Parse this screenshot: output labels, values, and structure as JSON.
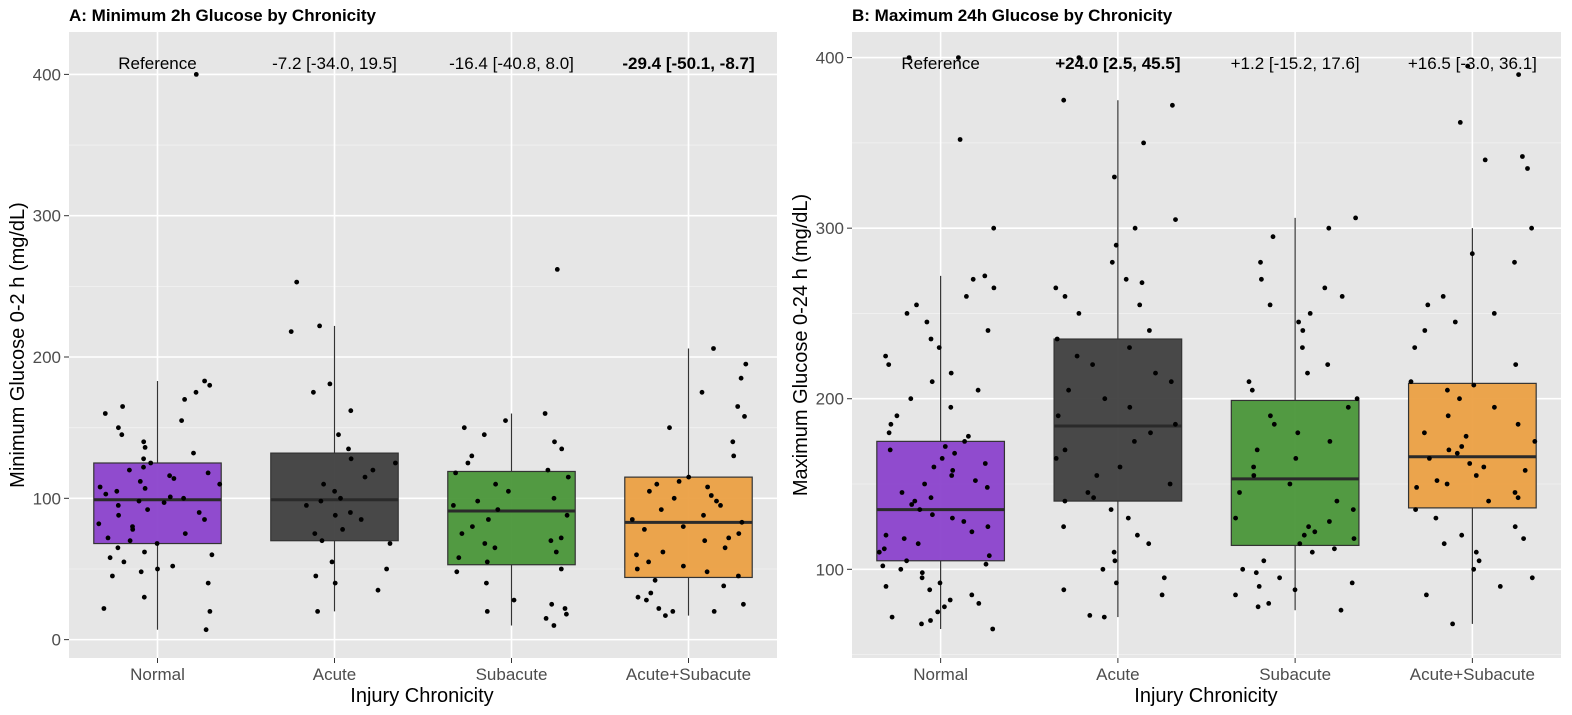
{
  "chart_data": [
    {
      "type": "box",
      "title": "A: Minimum 2h Glucose by Chronicity",
      "xlabel": "Injury Chronicity",
      "ylabel": "Minimum Glucose 0-2 h (mg/dL)",
      "ylim": [
        -13,
        430
      ],
      "yticks": [
        0,
        100,
        200,
        300,
        400
      ],
      "grid": true,
      "categories": [
        "Normal",
        "Acute",
        "Subacute",
        "Acute+Subacute"
      ],
      "colors": [
        "#8B42CC",
        "#3F3F3F",
        "#4A9639",
        "#EBA043"
      ],
      "annotations": [
        {
          "text": "Reference",
          "bold": false
        },
        {
          "text": "-7.2 [-34.0, 19.5]",
          "bold": false
        },
        {
          "text": "-16.4 [-40.8, 8.0]",
          "bold": false
        },
        {
          "text": "-29.4 [-50.1, -8.7]",
          "bold": true
        }
      ],
      "boxes": [
        {
          "q1": 68,
          "median": 99,
          "q3": 125,
          "whisker_low": 7,
          "whisker_high": 183
        },
        {
          "q1": 70,
          "median": 99,
          "q3": 132,
          "whisker_low": 20,
          "whisker_high": 222
        },
        {
          "q1": 53,
          "median": 91,
          "q3": 119,
          "whisker_low": 10,
          "whisker_high": 160
        },
        {
          "q1": 44,
          "median": 83,
          "q3": 115,
          "whisker_low": 17,
          "whisker_high": 206
        }
      ],
      "points": [
        [
          7,
          20,
          22,
          30,
          40,
          45,
          48,
          50,
          52,
          55,
          58,
          60,
          62,
          65,
          68,
          70,
          72,
          75,
          78,
          80,
          82,
          85,
          88,
          90,
          92,
          95,
          97,
          98,
          100,
          101,
          103,
          105,
          107,
          108,
          110,
          112,
          114,
          116,
          118,
          120,
          122,
          125,
          128,
          132,
          136,
          140,
          145,
          150,
          155,
          160,
          165,
          170,
          175,
          180,
          183,
          400
        ],
        [
          20,
          35,
          40,
          45,
          50,
          55,
          68,
          70,
          75,
          78,
          85,
          88,
          90,
          95,
          98,
          100,
          105,
          110,
          115,
          120,
          125,
          128,
          135,
          145,
          162,
          175,
          181,
          218,
          222,
          253
        ],
        [
          10,
          15,
          18,
          20,
          22,
          25,
          28,
          40,
          48,
          50,
          55,
          58,
          62,
          65,
          68,
          70,
          72,
          75,
          80,
          85,
          88,
          92,
          95,
          98,
          100,
          105,
          110,
          115,
          118,
          120,
          125,
          130,
          135,
          140,
          145,
          150,
          155,
          160,
          262
        ],
        [
          17,
          20,
          20,
          22,
          25,
          28,
          30,
          33,
          38,
          42,
          45,
          48,
          50,
          52,
          55,
          60,
          62,
          65,
          70,
          72,
          75,
          78,
          80,
          83,
          85,
          88,
          92,
          95,
          98,
          100,
          102,
          105,
          108,
          110,
          112,
          115,
          130,
          140,
          150,
          158,
          165,
          175,
          185,
          195,
          206
        ]
      ]
    },
    {
      "type": "box",
      "title": "B: Maximum 24h Glucose by Chronicity",
      "xlabel": "Injury Chronicity",
      "ylabel": "Maximum Glucose 0-24 h (mg/dL)",
      "ylim": [
        48,
        415
      ],
      "yticks": [
        100,
        200,
        300,
        400
      ],
      "grid": true,
      "categories": [
        "Normal",
        "Acute",
        "Subacute",
        "Acute+Subacute"
      ],
      "colors": [
        "#8B42CC",
        "#3F3F3F",
        "#4A9639",
        "#EBA043"
      ],
      "annotations": [
        {
          "text": "Reference",
          "bold": false
        },
        {
          "text": "+24.0 [2.5, 45.5]",
          "bold": true
        },
        {
          "text": "+1.2 [-15.2, 17.6]",
          "bold": false
        },
        {
          "text": "+16.5 [-3.0, 36.1]",
          "bold": false
        }
      ],
      "boxes": [
        {
          "q1": 105,
          "median": 135,
          "q3": 175,
          "whisker_low": 65,
          "whisker_high": 272
        },
        {
          "q1": 140,
          "median": 184,
          "q3": 235,
          "whisker_low": 72,
          "whisker_high": 375
        },
        {
          "q1": 114,
          "median": 153,
          "q3": 199,
          "whisker_low": 76,
          "whisker_high": 306
        },
        {
          "q1": 136,
          "median": 166,
          "q3": 209,
          "whisker_low": 68,
          "whisker_high": 300
        }
      ],
      "points": [
        [
          65,
          68,
          70,
          72,
          75,
          78,
          80,
          82,
          85,
          88,
          90,
          92,
          95,
          98,
          100,
          102,
          103,
          105,
          108,
          110,
          112,
          115,
          118,
          120,
          122,
          125,
          128,
          130,
          132,
          135,
          138,
          140,
          142,
          145,
          148,
          150,
          152,
          155,
          158,
          160,
          162,
          165,
          168,
          170,
          172,
          175,
          178,
          180,
          185,
          190,
          195,
          200,
          205,
          210,
          215,
          220,
          225,
          230,
          235,
          240,
          245,
          250,
          255,
          260,
          265,
          270,
          272,
          300,
          352,
          400,
          400
        ],
        [
          72,
          73,
          85,
          88,
          92,
          95,
          100,
          105,
          110,
          115,
          120,
          125,
          130,
          135,
          140,
          142,
          145,
          150,
          155,
          160,
          165,
          170,
          175,
          180,
          185,
          190,
          195,
          200,
          205,
          210,
          215,
          220,
          225,
          230,
          235,
          240,
          250,
          255,
          260,
          265,
          268,
          270,
          280,
          290,
          300,
          305,
          330,
          350,
          372,
          375,
          400
        ],
        [
          76,
          78,
          80,
          85,
          88,
          90,
          92,
          95,
          98,
          100,
          105,
          110,
          112,
          115,
          118,
          120,
          122,
          125,
          128,
          130,
          135,
          140,
          145,
          150,
          155,
          160,
          165,
          170,
          175,
          180,
          185,
          190,
          195,
          200,
          205,
          210,
          215,
          220,
          230,
          240,
          245,
          250,
          255,
          260,
          265,
          270,
          280,
          295,
          300,
          306
        ],
        [
          68,
          85,
          90,
          95,
          100,
          105,
          110,
          115,
          118,
          120,
          125,
          130,
          135,
          140,
          142,
          145,
          148,
          150,
          152,
          155,
          158,
          160,
          162,
          165,
          168,
          170,
          172,
          175,
          178,
          180,
          185,
          190,
          195,
          200,
          205,
          208,
          210,
          220,
          230,
          240,
          245,
          250,
          255,
          260,
          280,
          285,
          300,
          335,
          340,
          342,
          362,
          390,
          395
        ]
      ]
    }
  ]
}
